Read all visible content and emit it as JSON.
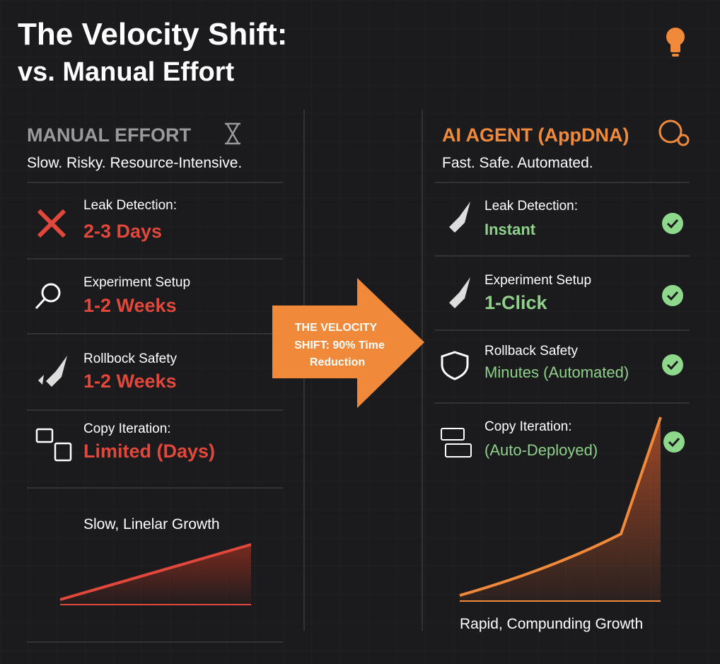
{
  "header": {
    "title": "The Velocity Shift:",
    "subtitle": "vs. Manual Effort"
  },
  "manual": {
    "heading": "MANUAL EFFORT",
    "tagline": "Slow. Risky. Resource-Intensive.",
    "rows": [
      {
        "label": "Leak Detection:",
        "value": "2-3 Days"
      },
      {
        "label": "Experiment Setup",
        "value": "1-2 Weeks"
      },
      {
        "label": "Rollbock Safety",
        "value": "1-2 Weeks"
      },
      {
        "label": "Copy Iteration:",
        "value": "Limited (Days)"
      }
    ],
    "growth": "Slow, Linelar Growth"
  },
  "arrow": {
    "lines": [
      "THE VELOCITY",
      "SHIFT: 90% Time",
      "Reduction"
    ]
  },
  "agent": {
    "heading": "AI AGENT (AppDNA)",
    "tagline": "Fast. Safe. Automated.",
    "rows": [
      {
        "label": "Leak Detection:",
        "value": "Instant"
      },
      {
        "label": "Experiment Setup",
        "value": "1-Click"
      },
      {
        "label": "Rollback Safety",
        "value": "Minutes (Automated)"
      },
      {
        "label": "Copy Iteration:",
        "value": "(Auto-Deployed)"
      }
    ],
    "growth": "Rapid, Compunding Growth"
  }
}
